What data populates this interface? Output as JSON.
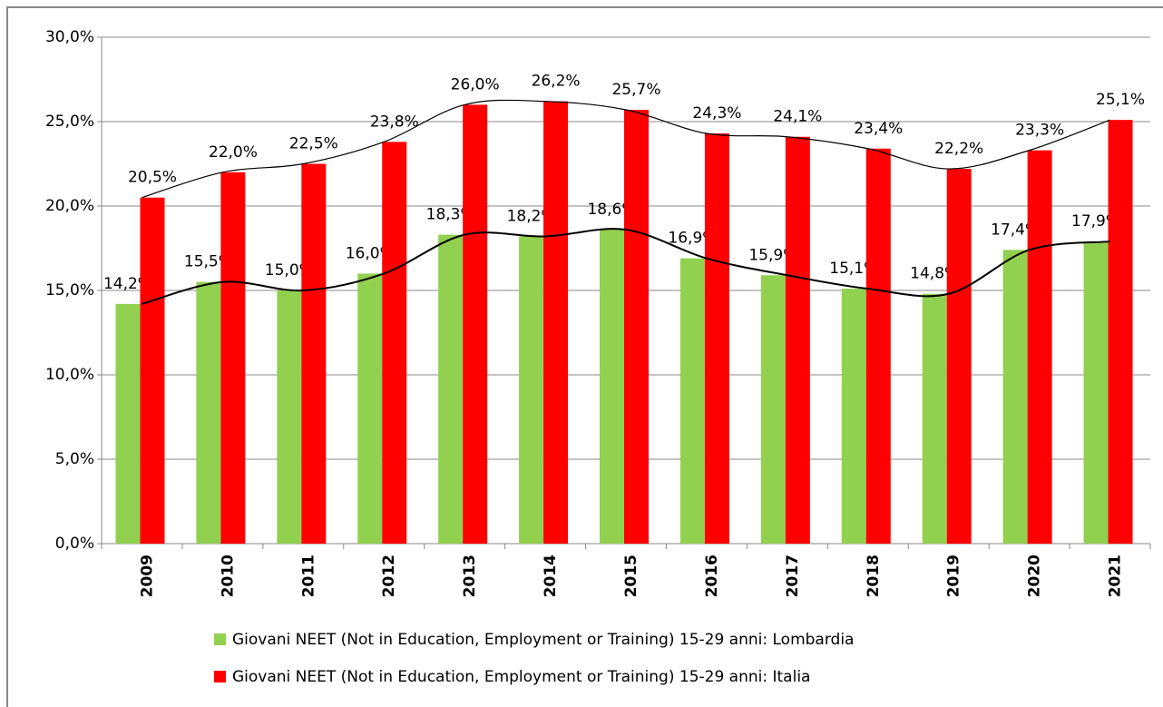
{
  "chart_data": {
    "type": "bar",
    "categories": [
      "2009",
      "2010",
      "2011",
      "2012",
      "2013",
      "2014",
      "2015",
      "2016",
      "2017",
      "2018",
      "2019",
      "2020",
      "2021"
    ],
    "series": [
      {
        "name": "Giovani NEET (Not in Education, Employment or Training) 15-29 anni: Lombardia",
        "color": "#92d050",
        "values": [
          14.2,
          15.5,
          15.0,
          16.0,
          18.3,
          18.2,
          18.6,
          16.9,
          15.9,
          15.1,
          14.8,
          17.4,
          17.9
        ],
        "value_labels": [
          "14,2%",
          "15,5%",
          "15,0%",
          "16,0%",
          "18,3%",
          "18,2%",
          "18,6%",
          "16,9%",
          "15,9%",
          "15,1%",
          "14,8%",
          "17,4%",
          "17,9%"
        ]
      },
      {
        "name": "Giovani NEET (Not in Education, Employment or Training) 15-29 anni: Italia",
        "color": "#ff0000",
        "values": [
          20.5,
          22.0,
          22.5,
          23.8,
          26.0,
          26.2,
          25.7,
          24.3,
          24.1,
          23.4,
          22.2,
          23.3,
          25.1
        ],
        "value_labels": [
          "20,5%",
          "22,0%",
          "22,5%",
          "23,8%",
          "26,0%",
          "26,2%",
          "25,7%",
          "24,3%",
          "24,1%",
          "23,4%",
          "22,2%",
          "23,3%",
          "25,1%"
        ]
      }
    ],
    "ylim": [
      0,
      30
    ],
    "yticks": [
      {
        "value": 0,
        "label": "0,0%"
      },
      {
        "value": 5,
        "label": "5,0%"
      },
      {
        "value": 10,
        "label": "10,0%"
      },
      {
        "value": 15,
        "label": "15,0%"
      },
      {
        "value": 20,
        "label": "20,0%"
      },
      {
        "value": 25,
        "label": "25,0%"
      },
      {
        "value": 30,
        "label": "30,0%"
      }
    ],
    "grid": true,
    "trendline": true,
    "legend": "bottom"
  }
}
